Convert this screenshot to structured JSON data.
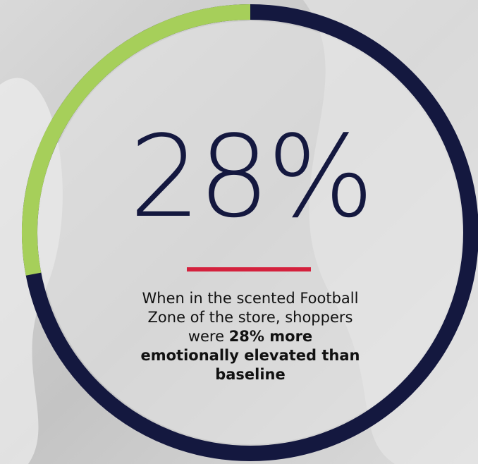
{
  "chart_data": {
    "type": "donut",
    "values": [
      28
    ],
    "value_labels": [
      "28%"
    ],
    "color": "#a6cf5a",
    "track_color": "#14183f",
    "accent_color": "#d4213d",
    "caption": {
      "text": "When in the scented Football Zone of the store, shoppers were",
      "emphasis": "28% more emotionally elevated than baseline"
    }
  }
}
